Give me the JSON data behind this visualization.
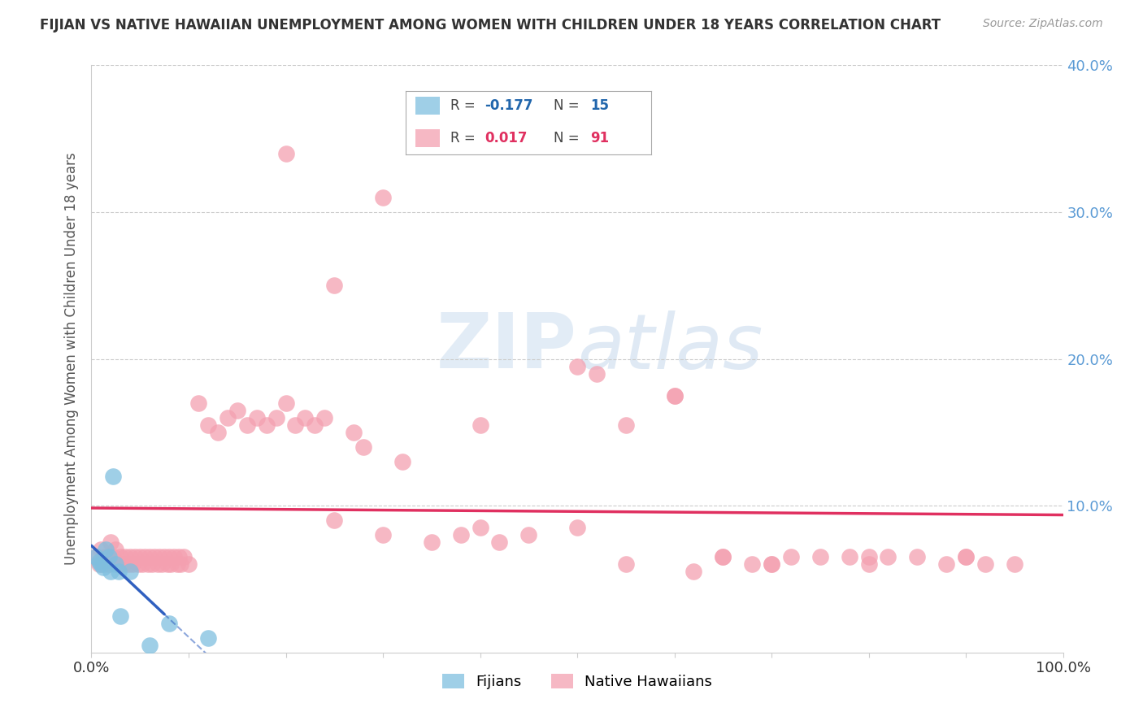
{
  "title": "FIJIAN VS NATIVE HAWAIIAN UNEMPLOYMENT AMONG WOMEN WITH CHILDREN UNDER 18 YEARS CORRELATION CHART",
  "source": "Source: ZipAtlas.com",
  "ylabel": "Unemployment Among Women with Children Under 18 years",
  "xlim": [
    0,
    1.0
  ],
  "ylim": [
    0,
    0.4
  ],
  "xticks": [
    0.0,
    0.1,
    0.2,
    0.3,
    0.4,
    0.5,
    0.6,
    0.7,
    0.8,
    0.9,
    1.0
  ],
  "xticklabels": [
    "0.0%",
    "",
    "",
    "",
    "",
    "",
    "",
    "",
    "",
    "",
    "100.0%"
  ],
  "yticks": [
    0.0,
    0.1,
    0.2,
    0.3,
    0.4
  ],
  "yticklabels": [
    "",
    "10.0%",
    "20.0%",
    "30.0%",
    "40.0%"
  ],
  "fijian_color": "#7fbfdf",
  "hawaiian_color": "#f4a0b0",
  "fijian_line_color": "#3060c0",
  "hawaiian_line_color": "#e03060",
  "legend_fijian_R": "-0.177",
  "legend_fijian_N": "15",
  "legend_hawaiian_R": "0.017",
  "legend_hawaiian_N": "91",
  "background_color": "#ffffff",
  "fijian_x": [
    0.005,
    0.008,
    0.01,
    0.012,
    0.015,
    0.018,
    0.02,
    0.022,
    0.025,
    0.028,
    0.03,
    0.04,
    0.06,
    0.08,
    0.12
  ],
  "fijian_y": [
    0.065,
    0.062,
    0.06,
    0.058,
    0.07,
    0.065,
    0.055,
    0.12,
    0.06,
    0.055,
    0.025,
    0.055,
    0.005,
    0.02,
    0.01
  ],
  "hawaiian_x": [
    0.005,
    0.008,
    0.01,
    0.012,
    0.015,
    0.018,
    0.02,
    0.022,
    0.025,
    0.028,
    0.03,
    0.032,
    0.035,
    0.038,
    0.04,
    0.042,
    0.045,
    0.048,
    0.05,
    0.052,
    0.055,
    0.058,
    0.06,
    0.062,
    0.065,
    0.068,
    0.07,
    0.072,
    0.075,
    0.078,
    0.08,
    0.082,
    0.085,
    0.088,
    0.09,
    0.092,
    0.095,
    0.1,
    0.11,
    0.12,
    0.13,
    0.14,
    0.15,
    0.16,
    0.17,
    0.18,
    0.19,
    0.2,
    0.21,
    0.22,
    0.23,
    0.24,
    0.25,
    0.27,
    0.28,
    0.3,
    0.32,
    0.35,
    0.38,
    0.4,
    0.42,
    0.45,
    0.5,
    0.52,
    0.55,
    0.6,
    0.62,
    0.65,
    0.68,
    0.7,
    0.72,
    0.75,
    0.78,
    0.8,
    0.82,
    0.85,
    0.88,
    0.9,
    0.92,
    0.95,
    0.2,
    0.25,
    0.3,
    0.4,
    0.5,
    0.6,
    0.7,
    0.8,
    0.9,
    0.55,
    0.65
  ],
  "hawaiian_y": [
    0.065,
    0.06,
    0.07,
    0.06,
    0.065,
    0.06,
    0.075,
    0.065,
    0.07,
    0.06,
    0.065,
    0.06,
    0.065,
    0.06,
    0.065,
    0.06,
    0.065,
    0.06,
    0.065,
    0.06,
    0.065,
    0.06,
    0.065,
    0.06,
    0.065,
    0.06,
    0.065,
    0.06,
    0.065,
    0.06,
    0.065,
    0.06,
    0.065,
    0.06,
    0.065,
    0.06,
    0.065,
    0.06,
    0.17,
    0.155,
    0.15,
    0.16,
    0.165,
    0.155,
    0.16,
    0.155,
    0.16,
    0.17,
    0.155,
    0.16,
    0.155,
    0.16,
    0.09,
    0.15,
    0.14,
    0.08,
    0.13,
    0.075,
    0.08,
    0.085,
    0.075,
    0.08,
    0.085,
    0.19,
    0.06,
    0.175,
    0.055,
    0.065,
    0.06,
    0.06,
    0.065,
    0.065,
    0.065,
    0.06,
    0.065,
    0.065,
    0.06,
    0.065,
    0.06,
    0.06,
    0.34,
    0.25,
    0.31,
    0.155,
    0.195,
    0.175,
    0.06,
    0.065,
    0.065,
    0.155,
    0.065
  ]
}
